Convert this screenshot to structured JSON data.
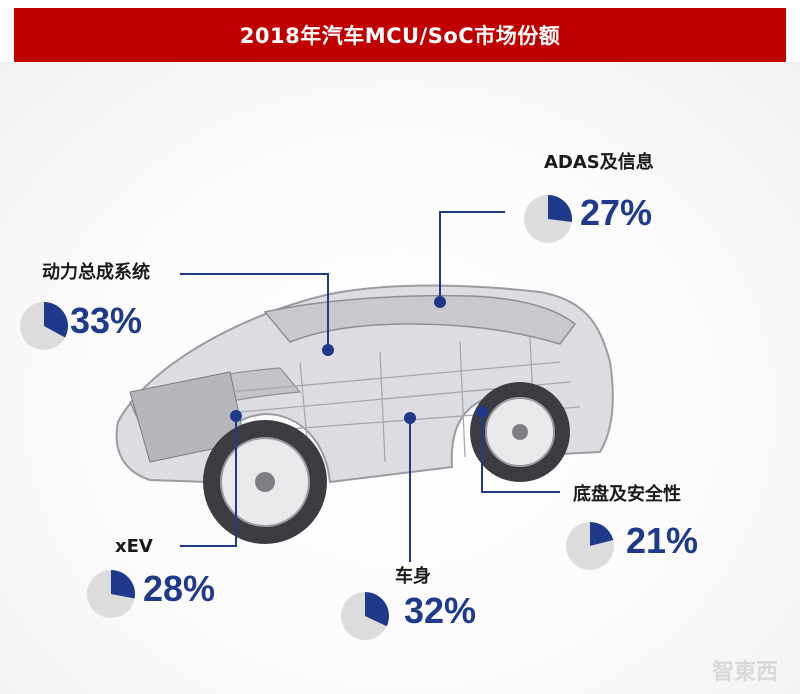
{
  "title": "2018年汽车MCU/SoC市场份额",
  "colors": {
    "title_bg": "#c00000",
    "accent": "#1f3a8a",
    "pie_bg": "#dcdcdc",
    "line": "#1f3a8a"
  },
  "segments": [
    {
      "id": "adas",
      "label": "ADAS及信息",
      "value": 27,
      "pct_text": "27%"
    },
    {
      "id": "powertrain",
      "label": "动力总成系统",
      "value": 33,
      "pct_text": "33%"
    },
    {
      "id": "chassis",
      "label": "底盘及安全性",
      "value": 21,
      "pct_text": "21%"
    },
    {
      "id": "xev",
      "label": "xEV",
      "value": 28,
      "pct_text": "28%"
    },
    {
      "id": "body",
      "label": "车身",
      "value": 32,
      "pct_text": "32%"
    }
  ],
  "watermark": "智東西"
}
